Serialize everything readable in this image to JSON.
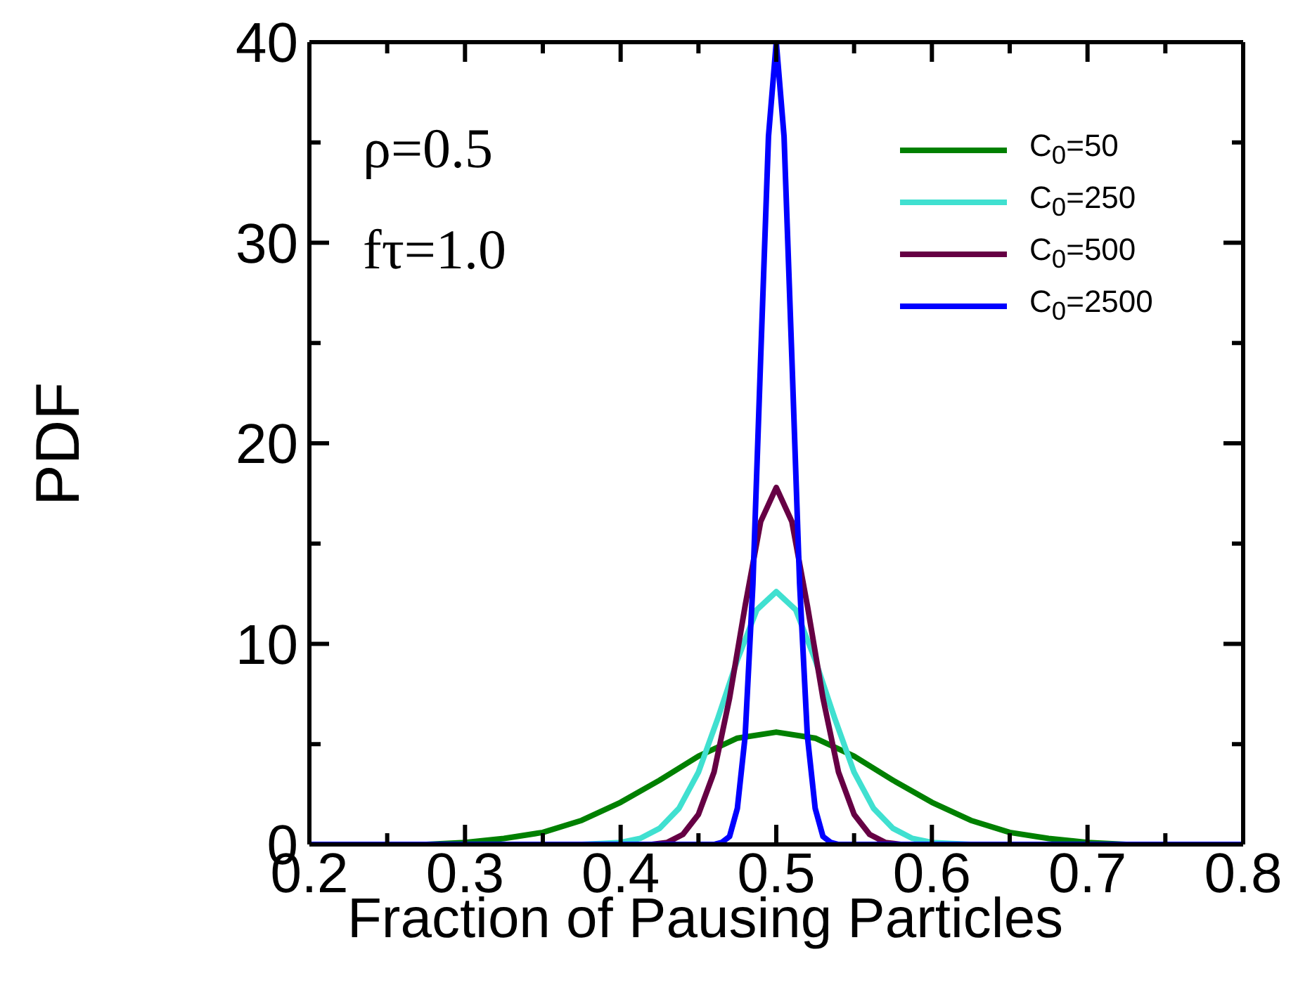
{
  "chart_data": {
    "type": "line",
    "xlabel": "Fraction of Pausing Particles",
    "ylabel": "PDF",
    "annotations": [
      "ρ=0.5",
      "fτ=1.0"
    ],
    "xlim": [
      0.2,
      0.8
    ],
    "ylim": [
      0,
      40
    ],
    "xticks": [
      0.2,
      {
        "value": 0.25,
        "label": null
      },
      0.3,
      {
        "value": 0.35,
        "label": null
      },
      0.4,
      {
        "value": 0.45,
        "label": null
      },
      0.5,
      {
        "value": 0.55,
        "label": null
      },
      0.6,
      {
        "value": 0.65,
        "label": null
      },
      0.7,
      {
        "value": 0.75,
        "label": null
      },
      0.8
    ],
    "yticks": [
      0,
      {
        "value": 5,
        "label": null
      },
      10,
      {
        "value": 15,
        "label": null
      },
      20,
      {
        "value": 25,
        "label": null
      },
      30,
      {
        "value": 35,
        "label": null
      },
      40
    ],
    "legend": "top right",
    "marker": "none",
    "line_style": "solid",
    "grid": false,
    "series": [
      {
        "name": "C$_{0}$=50",
        "color": "#008000",
        "x": [
          0.2,
          0.25,
          0.275,
          0.3,
          0.325,
          0.35,
          0.375,
          0.4,
          0.425,
          0.45,
          0.475,
          0.5,
          0.525,
          0.55,
          0.575,
          0.6,
          0.625,
          0.65,
          0.675,
          0.7,
          0.725,
          0.75,
          0.8
        ],
        "values": [
          0,
          0,
          0,
          0.1,
          0.3,
          0.6,
          1.2,
          2.1,
          3.2,
          4.4,
          5.3,
          5.6,
          5.3,
          4.4,
          3.2,
          2.1,
          1.2,
          0.6,
          0.3,
          0.1,
          0,
          0,
          0
        ]
      },
      {
        "name": "C$_{0}$=250",
        "color": "#40e0d0",
        "x": [
          0.2,
          0.375,
          0.4,
          0.4125,
          0.425,
          0.4375,
          0.45,
          0.4625,
          0.475,
          0.4875,
          0.5,
          0.5125,
          0.525,
          0.5375,
          0.55,
          0.5625,
          0.575,
          0.5875,
          0.6,
          0.625,
          0.8
        ],
        "values": [
          0,
          0,
          0.1,
          0.3,
          0.8,
          1.8,
          3.6,
          6.3,
          9.2,
          11.7,
          12.6,
          11.7,
          9.2,
          6.3,
          3.6,
          1.8,
          0.8,
          0.3,
          0.1,
          0,
          0
        ]
      },
      {
        "name": "C$_{0}$=500",
        "color": "#660044",
        "x": [
          0.2,
          0.4,
          0.42,
          0.43,
          0.44,
          0.45,
          0.46,
          0.47,
          0.48,
          0.49,
          0.5,
          0.51,
          0.52,
          0.53,
          0.54,
          0.55,
          0.56,
          0.57,
          0.58,
          0.6,
          0.8
        ],
        "values": [
          0,
          0,
          0,
          0.1,
          0.5,
          1.5,
          3.6,
          7.3,
          11.9,
          16.1,
          17.8,
          16.1,
          11.9,
          7.3,
          3.6,
          1.5,
          0.5,
          0.1,
          0,
          0,
          0
        ]
      },
      {
        "name": "C$_{0}$=2500",
        "color": "#0000ff",
        "x": [
          0.2,
          0.455,
          0.46,
          0.465,
          0.47,
          0.475,
          0.48,
          0.485,
          0.49,
          0.495,
          0.5,
          0.505,
          0.51,
          0.515,
          0.52,
          0.525,
          0.53,
          0.535,
          0.54,
          0.545,
          0.8
        ],
        "values": [
          0,
          0,
          0,
          0.1,
          0.4,
          1.8,
          5.4,
          13,
          24.3,
          35.3,
          40,
          35.3,
          24.3,
          13,
          5.4,
          1.8,
          0.4,
          0.1,
          0,
          0,
          0
        ]
      }
    ]
  }
}
